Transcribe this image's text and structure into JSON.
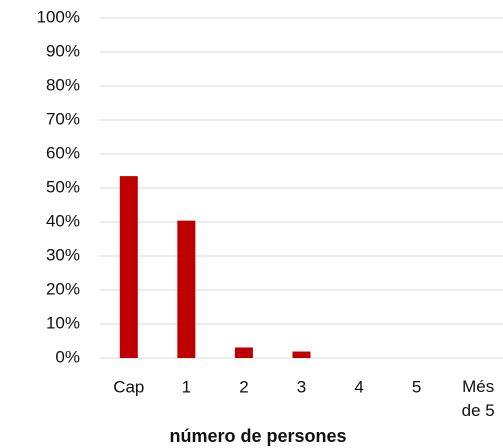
{
  "chart_data": {
    "type": "bar",
    "categories": [
      "Cap",
      "1",
      "2",
      "3",
      "4",
      "5",
      "Més de 5"
    ],
    "values": [
      53.5,
      40.4,
      3.1,
      1.9,
      0,
      0,
      0
    ],
    "color": "#c00000",
    "xlabel": "número de persones",
    "ylim": [
      0,
      100
    ],
    "yticks": [
      {
        "value": 0,
        "label": "0%"
      },
      {
        "value": 10,
        "label": "10%"
      },
      {
        "value": 20,
        "label": "20%"
      },
      {
        "value": 30,
        "label": "30%"
      },
      {
        "value": 40,
        "label": "40%"
      },
      {
        "value": 50,
        "label": "50%"
      },
      {
        "value": 60,
        "label": "60%"
      },
      {
        "value": 70,
        "label": "70%"
      },
      {
        "value": 80,
        "label": "80%"
      },
      {
        "value": 90,
        "label": "90%"
      },
      {
        "value": 100,
        "label": "100%"
      }
    ],
    "grid": true
  }
}
